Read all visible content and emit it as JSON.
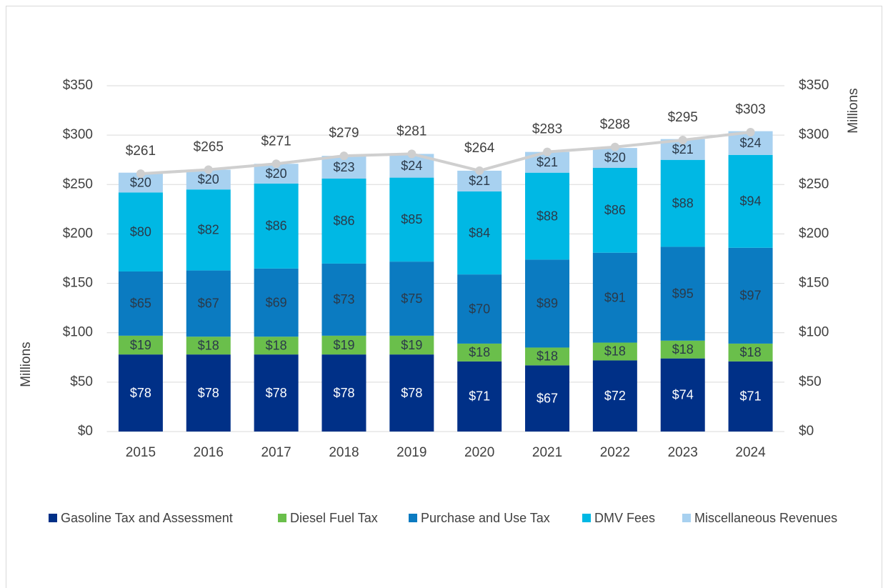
{
  "chart_data": {
    "type": "stacked-bar-line",
    "categories": [
      "2015",
      "2016",
      "2017",
      "2018",
      "2019",
      "2020",
      "2021",
      "2022",
      "2023",
      "2024"
    ],
    "series": [
      {
        "name": "Gasoline Tax and Assessment",
        "color": "#003087",
        "values": [
          78,
          78,
          78,
          78,
          78,
          71,
          67,
          72,
          74,
          71
        ],
        "value_labels": [
          "$78",
          "$78",
          "$78",
          "$78",
          "$78",
          "$71",
          "$67",
          "$72",
          "$74",
          "$71"
        ]
      },
      {
        "name": "Diesel Fuel Tax",
        "color": "#6abf4b",
        "values": [
          19,
          18,
          18,
          19,
          19,
          18,
          18,
          18,
          18,
          18
        ],
        "value_labels": [
          "$19",
          "$18",
          "$18",
          "$19",
          "$19",
          "$18",
          "$18",
          "$18",
          "$18",
          "$18"
        ]
      },
      {
        "name": "Purchase and Use Tax",
        "color": "#0b7bc1",
        "values": [
          65,
          67,
          69,
          73,
          75,
          70,
          89,
          91,
          95,
          97
        ],
        "value_labels": [
          "$65",
          "$67",
          "$69",
          "$73",
          "$75",
          "$70",
          "$89",
          "$91",
          "$95",
          "$97"
        ]
      },
      {
        "name": "DMV Fees",
        "color": "#00b8e4",
        "values": [
          80,
          82,
          86,
          86,
          85,
          84,
          88,
          86,
          88,
          94
        ],
        "value_labels": [
          "$80",
          "$82",
          "$86",
          "$86",
          "$85",
          "$84",
          "$88",
          "$86",
          "$88",
          "$94"
        ]
      },
      {
        "name": "Miscellaneous Revenues",
        "color": "#a8d1f0",
        "values": [
          20,
          20,
          20,
          23,
          24,
          21,
          21,
          20,
          21,
          24
        ],
        "value_labels": [
          "$20",
          "$20",
          "$20",
          "$23",
          "$24",
          "$21",
          "$21",
          "$20",
          "$21",
          "$24"
        ]
      }
    ],
    "line": {
      "color": "#cfcfcf",
      "axis": "y2",
      "values": [
        261,
        265,
        271,
        279,
        281,
        264,
        283,
        288,
        295,
        303
      ],
      "value_labels": [
        "$261",
        "$265",
        "$271",
        "$279",
        "$281",
        "$264",
        "$283",
        "$288",
        "$295",
        "$303"
      ]
    },
    "ylabel": "Millions",
    "y2label": "Millions",
    "ylim": [
      0,
      350
    ],
    "yticks": [
      {
        "value": 0,
        "label": "$0"
      },
      {
        "value": 50,
        "label": "$50"
      },
      {
        "value": 100,
        "label": "$100"
      },
      {
        "value": 150,
        "label": "$150"
      },
      {
        "value": 200,
        "label": "$200"
      },
      {
        "value": 250,
        "label": "$250"
      },
      {
        "value": 300,
        "label": "$300"
      },
      {
        "value": 350,
        "label": "$350"
      }
    ],
    "y2lim": [
      0,
      350
    ],
    "y2ticks": [
      {
        "value": 0,
        "label": "$0"
      },
      {
        "value": 50,
        "label": "$50"
      },
      {
        "value": 100,
        "label": "$100"
      },
      {
        "value": 150,
        "label": "$150"
      },
      {
        "value": 200,
        "label": "$200"
      },
      {
        "value": 250,
        "label": "$250"
      },
      {
        "value": 300,
        "label": "$300"
      },
      {
        "value": 350,
        "label": "$350"
      }
    ],
    "grid": true,
    "legend": "bottom"
  }
}
